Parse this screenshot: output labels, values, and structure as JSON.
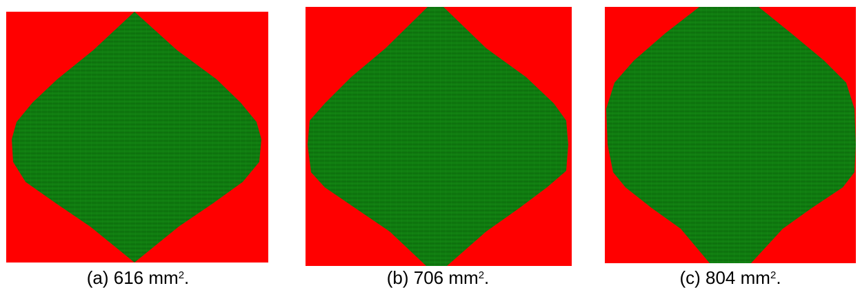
{
  "colors": {
    "outside": "#ff0000",
    "inside": "#0f7a0f",
    "inside_dark": "#0a5a0a",
    "inside_light": "#1c9a1c"
  },
  "panels": [
    {
      "label": "(a)",
      "value": "616",
      "unit": "mm",
      "exponent": "2",
      "suffix": "."
    },
    {
      "label": "(b)",
      "value": "706",
      "unit": "mm",
      "exponent": "2",
      "suffix": "."
    },
    {
      "label": "(c)",
      "value": "804",
      "unit": "mm",
      "exponent": "2",
      "suffix": "."
    }
  ]
}
